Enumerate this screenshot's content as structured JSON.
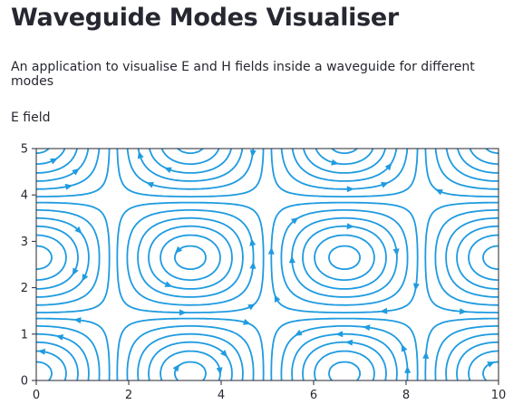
{
  "app": {
    "title": "Waveguide Modes Visualiser",
    "subtitle": "An application to visualise E and H fields inside a waveguide for different modes",
    "section_label": "E field"
  },
  "chart_data": {
    "type": "streamplot",
    "title": "",
    "xlabel": "",
    "ylabel": "",
    "xlim": [
      0,
      10
    ],
    "ylim": [
      0,
      5
    ],
    "x_ticks": [
      0,
      2,
      4,
      6,
      8,
      10
    ],
    "y_ticks": [
      0,
      1,
      2,
      3,
      4,
      5
    ],
    "grid": false,
    "line_color": "#1f9be0",
    "cells_x": 3,
    "cells_y": 2,
    "vortex_centers": [
      {
        "x": 0,
        "y": 3.5
      },
      {
        "x": 3.35,
        "y": 3.35
      },
      {
        "x": 6.65,
        "y": 3.4
      },
      {
        "x": 10,
        "y": 3.5
      },
      {
        "x": 0,
        "y": 1.7
      },
      {
        "x": 3.35,
        "y": 1.7
      },
      {
        "x": 6.65,
        "y": 1.7
      },
      {
        "x": 10,
        "y": 1.7
      },
      {
        "x": 3.35,
        "y": 0
      },
      {
        "x": 6.65,
        "y": 0
      },
      {
        "x": 3.35,
        "y": 5
      },
      {
        "x": 6.65,
        "y": 5
      }
    ]
  }
}
